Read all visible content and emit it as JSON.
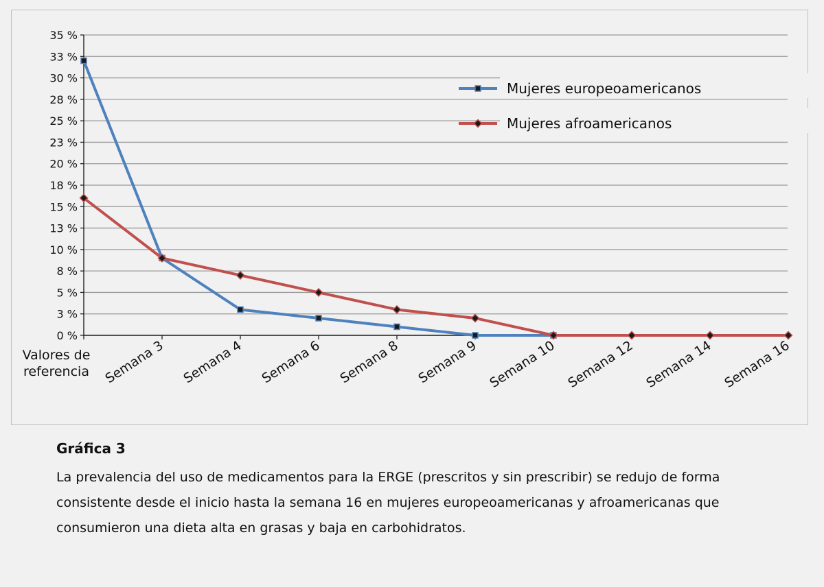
{
  "chart_data": {
    "type": "line",
    "categories": [
      "Valores de referencia",
      "Semana 3",
      "Semana 4",
      "Semana 6",
      "Semana 8",
      "Semana 9",
      "Semana 10",
      "Semana 12",
      "Semana 14",
      "Semana 16"
    ],
    "y_ticks": [
      "0 %",
      "3 %",
      "5 %",
      "8 %",
      "10 %",
      "13 %",
      "15 %",
      "18 %",
      "20 %",
      "23 %",
      "25 %",
      "28 %",
      "30 %",
      "33 %",
      "35 %"
    ],
    "ylim": [
      0,
      35
    ],
    "grid": true,
    "legend_position": "top-right",
    "series": [
      {
        "name": "Mujeres europeoamericanos",
        "color": "#4f81bd",
        "marker": "square",
        "values": [
          32,
          9,
          3,
          2,
          1,
          0,
          0,
          null,
          null,
          null
        ]
      },
      {
        "name": "Mujeres afroamericanos",
        "color": "#c0504d",
        "marker": "diamond",
        "values": [
          16,
          9,
          7,
          5,
          3,
          2,
          0,
          0,
          0,
          0
        ]
      }
    ]
  },
  "caption": {
    "title": "Gráfica 3",
    "text": "La prevalencia del uso de medicamentos para la ERGE (prescritos y sin prescribir) se redujo de forma consistente desde el inicio hasta la semana 16 en mujeres europeoamericanas y afroamericanas que consumieron una dieta alta en grasas y baja en carbohidratos."
  }
}
